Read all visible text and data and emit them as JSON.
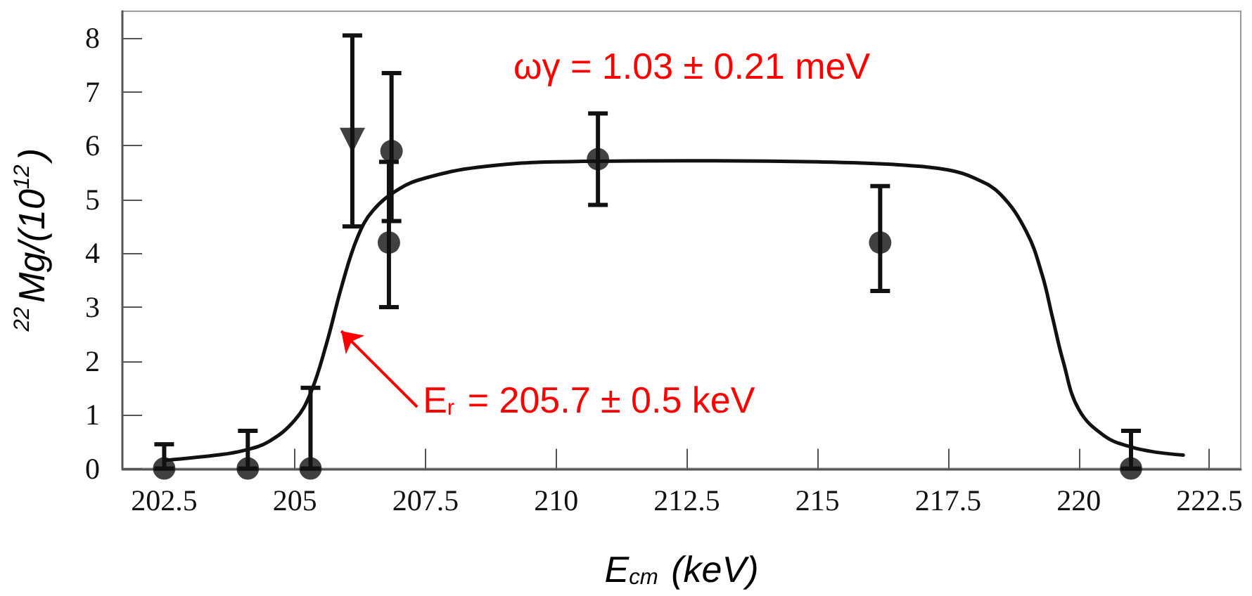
{
  "chart_data": {
    "type": "scatter",
    "xlabel": "E$_{cm}$ (keV)",
    "ylabel": "$^{22}$Mg/(10$^{12}$)",
    "xlim": [
      201.7,
      223.1
    ],
    "xticks": [
      202.5,
      205,
      207.5,
      210,
      212.5,
      215,
      217.5,
      220,
      222.5
    ],
    "ylim": [
      0,
      8.5
    ],
    "yticks": [
      0,
      1,
      2,
      3,
      4,
      5,
      6,
      7,
      8
    ],
    "series": [
      {
        "color": "#111111",
        "marker": "circle",
        "x": [
          202.5,
          204.1,
          205.3,
          206.8,
          206.85,
          210.8,
          216.2,
          221.0
        ],
        "values": [
          0,
          0,
          0,
          4.2,
          5.9,
          5.75,
          4.2,
          0
        ],
        "errors": [
          [
            0,
            0.45
          ],
          [
            0,
            0.7
          ],
          [
            0,
            1.5
          ],
          [
            3.0,
            5.7
          ],
          [
            4.6,
            7.35
          ],
          [
            4.9,
            6.6
          ],
          [
            3.3,
            5.25
          ],
          [
            0,
            0.7
          ]
        ]
      },
      {
        "color": "#111111",
        "marker": "triangle",
        "x": [
          206.1
        ],
        "values": [
          6.1
        ],
        "errors": [
          [
            4.5,
            8.05
          ]
        ]
      },
      {
        "type": "line",
        "color": "#111111",
        "marker": "none",
        "line_style": "solid",
        "x": [
          202.5,
          203.5,
          204,
          204.5,
          205,
          205.3,
          205.6,
          205.9,
          206.2,
          206.5,
          207,
          207.5,
          208.5,
          210,
          212.5,
          215,
          216.5,
          217.5,
          218,
          218.5,
          219,
          219.3,
          219.5,
          219.7,
          220,
          220.5,
          221,
          221.5,
          222
        ],
        "values": [
          0.15,
          0.25,
          0.33,
          0.5,
          0.9,
          1.4,
          2.3,
          3.4,
          4.3,
          4.8,
          5.2,
          5.4,
          5.6,
          5.7,
          5.72,
          5.7,
          5.65,
          5.55,
          5.4,
          5.1,
          4.4,
          3.6,
          2.8,
          2.0,
          1.1,
          0.6,
          0.4,
          0.3,
          0.25
        ]
      }
    ],
    "annotations": [
      "ωγ = 1.03 ± 0.21 meV",
      {
        "text": "E$_{r}$ = 205.7 ± 0.5 keV",
        "x": 205.78,
        "y": 2.66
      }
    ],
    "grid": false
  }
}
